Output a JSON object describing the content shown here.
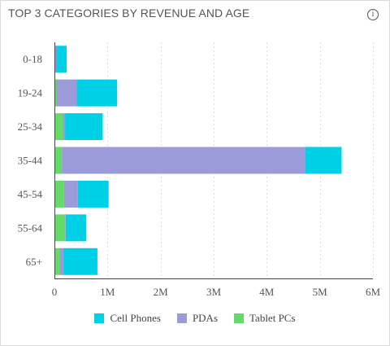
{
  "header": {
    "info_icon": "info-icon",
    "info_glyph": "i"
  },
  "colors": {
    "Cell Phones": "#00d0e6",
    "PDAs": "#9b9bd9",
    "Tablet PCs": "#66d96b",
    "grid": "#dddddd",
    "axis": "#444444"
  },
  "chart_data": {
    "type": "bar",
    "orientation": "horizontal",
    "stacked": true,
    "title": "TOP 3 CATEGORIES BY REVENUE AND AGE",
    "categories": [
      "0-18",
      "19-24",
      "25-34",
      "35-44",
      "45-54",
      "55-64",
      "65+"
    ],
    "series": [
      {
        "name": "Tablet PCs",
        "values": [
          10000,
          30000,
          160000,
          140000,
          180000,
          200000,
          100000
        ]
      },
      {
        "name": "PDAs",
        "values": [
          20000,
          390000,
          40000,
          4580000,
          260000,
          10000,
          70000
        ]
      },
      {
        "name": "Cell Phones",
        "values": [
          200000,
          760000,
          710000,
          690000,
          580000,
          390000,
          640000
        ]
      }
    ],
    "xlim": [
      0,
      6000000
    ],
    "xticks": [
      0,
      1000000,
      2000000,
      3000000,
      4000000,
      5000000,
      6000000
    ],
    "xtick_labels": [
      "0",
      "1M",
      "2M",
      "3M",
      "4M",
      "5M",
      "6M"
    ],
    "grid": true,
    "legend": {
      "position": "bottom",
      "entries": [
        "Cell Phones",
        "PDAs",
        "Tablet PCs"
      ]
    }
  }
}
